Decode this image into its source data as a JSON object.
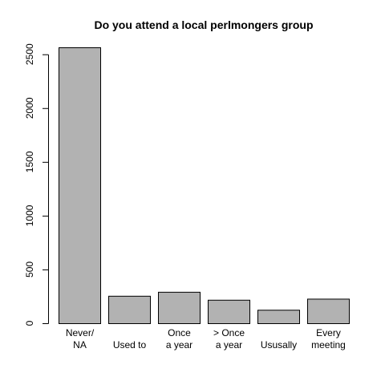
{
  "chart_data": {
    "type": "bar",
    "title": "Do you attend a local perlmongers group",
    "categories": [
      [
        "Never/",
        "NA"
      ],
      [
        "Used to"
      ],
      [
        "Once",
        "a year"
      ],
      [
        "> Once",
        "a year"
      ],
      [
        "Ususally"
      ],
      [
        "Every",
        "meeting"
      ]
    ],
    "values": [
      2565,
      255,
      292,
      218,
      125,
      228
    ],
    "ylim": [
      0,
      2565
    ],
    "yticks": [
      0,
      500,
      1000,
      1500,
      2000,
      2500
    ],
    "xlabel": "",
    "ylabel": "",
    "grid": false,
    "bar_color": "#b2b2b2"
  }
}
